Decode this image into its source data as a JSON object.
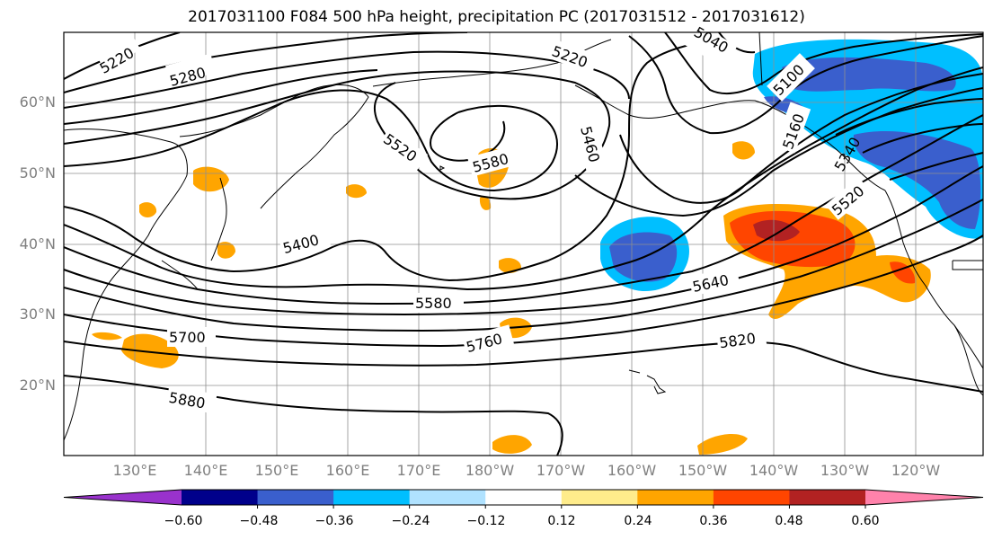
{
  "title": "2017031100 F084 500 hPa height, precipitation PC (2017031512 - 2017031612)",
  "lat_labels": [
    "60°N",
    "50°N",
    "40°N",
    "30°N",
    "20°N"
  ],
  "lon_labels": [
    "130°E",
    "140°E",
    "150°E",
    "160°E",
    "170°E",
    "180°W",
    "170°W",
    "160°W",
    "150°W",
    "140°W",
    "130°W",
    "120°W"
  ],
  "contour_labels": [
    "5220",
    "5280",
    "5040",
    "5220",
    "5100",
    "5160",
    "5340",
    "5520",
    "5460",
    "5580",
    "5520",
    "5400",
    "5580",
    "5640",
    "5700",
    "5760",
    "5820",
    "5880"
  ],
  "colorbar": {
    "colors": [
      "#9932cc",
      "#00008b",
      "#3a5fcd",
      "#00bfff",
      "#b0e2ff",
      "#ffffff",
      "#ffec8b",
      "#ffa500",
      "#ff4500",
      "#b22222",
      "#ff82ab"
    ],
    "ticks": [
      "−0.60",
      "−0.48",
      "−0.36",
      "−0.24",
      "−0.12",
      "0.12",
      "0.24",
      "0.36",
      "0.48",
      "0.60"
    ]
  }
}
